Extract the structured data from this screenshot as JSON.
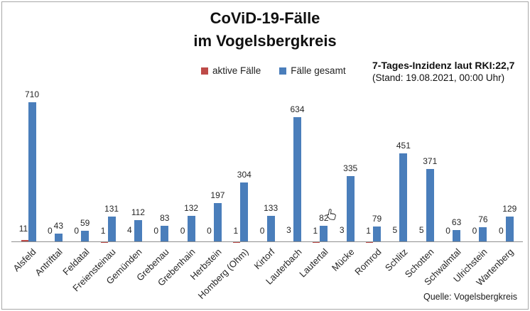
{
  "title": {
    "line1": "CoViD-19-Fälle",
    "line2": "im Vogelsbergkreis"
  },
  "legend": [
    {
      "label": "aktive Fälle",
      "color": "#be4b48"
    },
    {
      "label": "Fälle gesamt",
      "color": "#4a7ebb"
    }
  ],
  "info": {
    "line1": "7-Tages-Inzidenz laut RKI:22,7",
    "line2": "(Stand: 19.08.2021, 00:00 Uhr)"
  },
  "source": "Quelle: Vogelsbergkreis",
  "chart_data": {
    "type": "bar",
    "title": "CoViD-19-Fälle im Vogelsbergkreis",
    "categories": [
      "Alsfeld",
      "Antrifttal",
      "Feldatal",
      "Freiensteinau",
      "Gemünden",
      "Grebenau",
      "Grebenhain",
      "Herbstein",
      "Homberg (Ohm)",
      "Kirtorf",
      "Lauterbach",
      "Lautertal",
      "Mücke",
      "Romrod",
      "Schlitz",
      "Schotten",
      "Schwalmtal",
      "Ulrichstein",
      "Wartenberg"
    ],
    "series": [
      {
        "name": "aktive Fälle",
        "color": "#be4b48",
        "values": [
          11,
          0,
          0,
          1,
          4,
          0,
          0,
          0,
          1,
          0,
          3,
          1,
          3,
          1,
          5,
          5,
          0,
          0,
          0
        ]
      },
      {
        "name": "Fälle gesamt",
        "color": "#4a7ebb",
        "values": [
          710,
          43,
          59,
          131,
          112,
          83,
          132,
          197,
          304,
          133,
          634,
          82,
          335,
          79,
          451,
          371,
          63,
          76,
          129
        ]
      }
    ],
    "xlabel": "",
    "ylabel": "",
    "ylim": [
      0,
      760
    ],
    "grid": false,
    "legend_position": "top",
    "value_labels": true
  }
}
